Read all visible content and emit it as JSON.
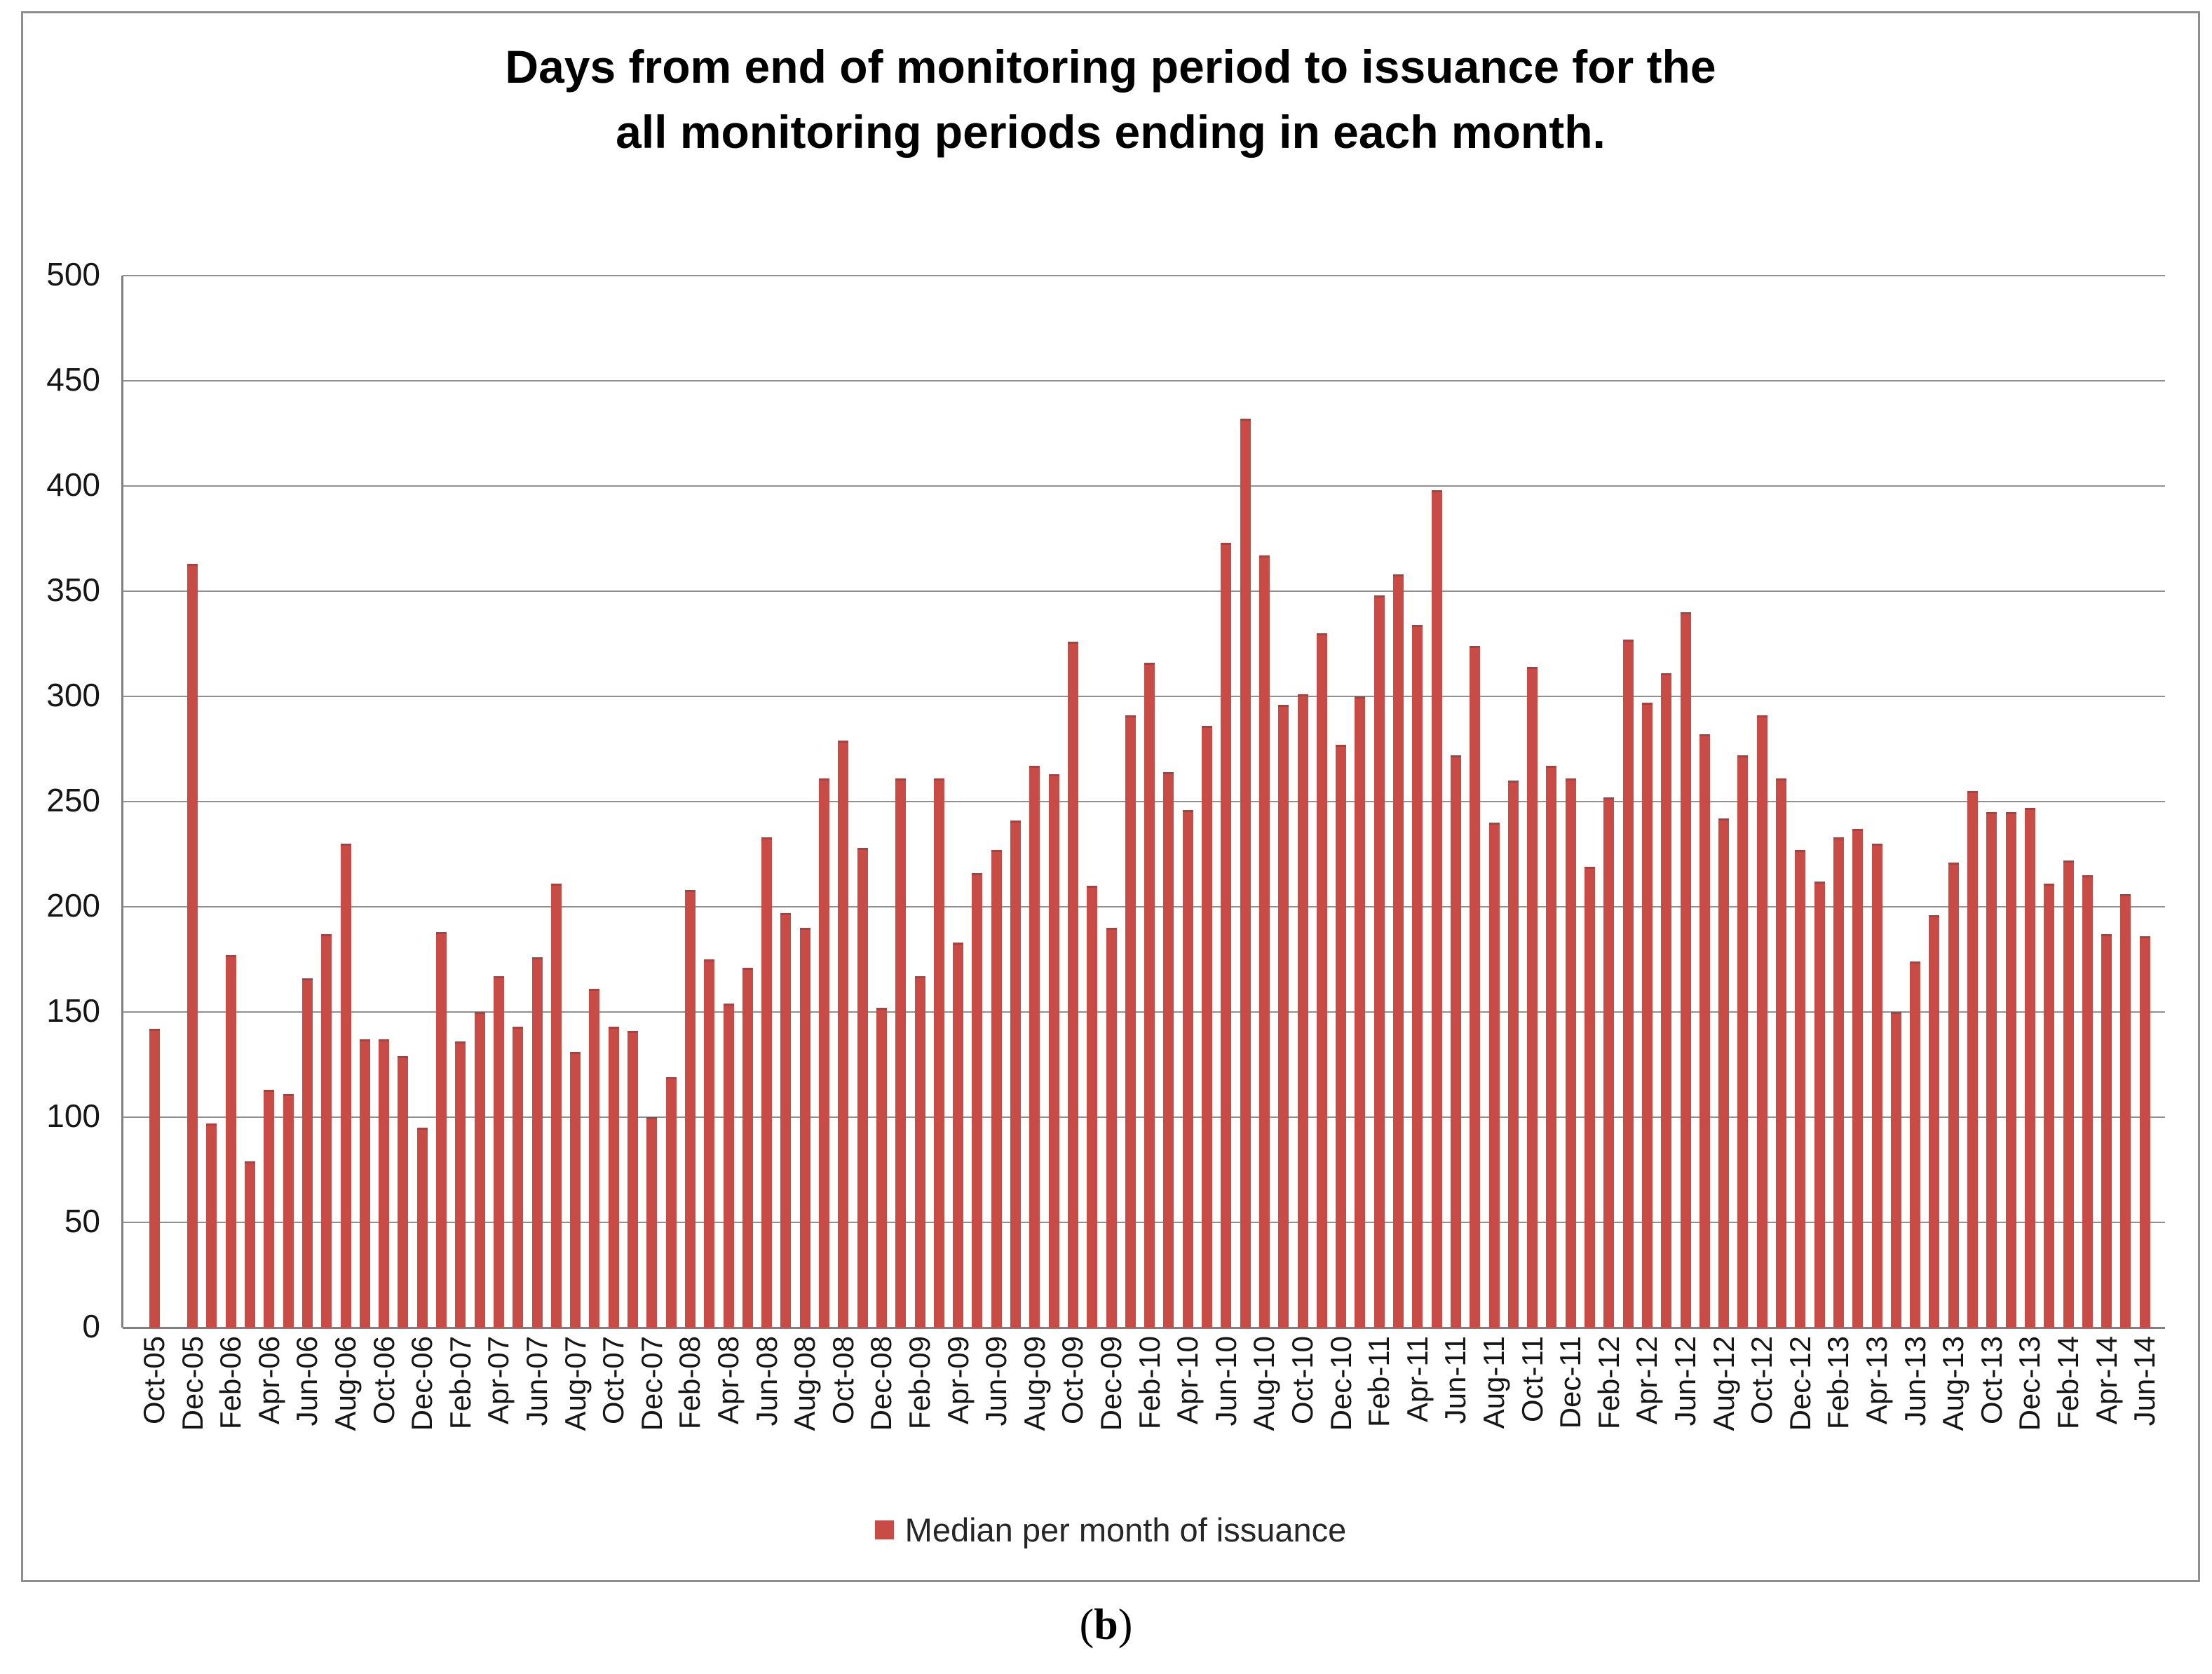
{
  "title": {
    "line1": "Days from end of monitoring period to issuance for the",
    "line2": "all monitoring periods ending in each month."
  },
  "legend": {
    "label": "Median per month of issuance",
    "marker_color": "#c84b45"
  },
  "caption": {
    "open": "(",
    "letter": "b",
    "close": ")"
  },
  "colors": {
    "bar": "#c84b45",
    "bar_cap": "#ab403c",
    "gridline": "#909090",
    "axis": "#7f7f7f",
    "frame": "#8d8d8d",
    "text": "#161616"
  },
  "chart_data": {
    "type": "bar",
    "title": "Days from end of monitoring period to issuance for the all monitoring periods ending in each month.",
    "xlabel": "",
    "ylabel": "",
    "ylim": [
      0,
      500
    ],
    "yticks": [
      0,
      50,
      100,
      150,
      200,
      250,
      300,
      350,
      400,
      450,
      500
    ],
    "grid": true,
    "legend_entries": [
      "Median per month of issuance"
    ],
    "legend_position": "bottom",
    "x_tick_every": 2,
    "categories": [
      "Oct-05",
      "Nov-05",
      "Dec-05",
      "Jan-06",
      "Feb-06",
      "Mar-06",
      "Apr-06",
      "May-06",
      "Jun-06",
      "Jul-06",
      "Aug-06",
      "Sep-06",
      "Oct-06",
      "Nov-06",
      "Dec-06",
      "Jan-07",
      "Feb-07",
      "Mar-07",
      "Apr-07",
      "May-07",
      "Jun-07",
      "Jul-07",
      "Aug-07",
      "Sep-07",
      "Oct-07",
      "Nov-07",
      "Dec-07",
      "Jan-08",
      "Feb-08",
      "Mar-08",
      "Apr-08",
      "May-08",
      "Jun-08",
      "Jul-08",
      "Aug-08",
      "Sep-08",
      "Oct-08",
      "Nov-08",
      "Dec-08",
      "Jan-09",
      "Feb-09",
      "Mar-09",
      "Apr-09",
      "May-09",
      "Jun-09",
      "Jul-09",
      "Aug-09",
      "Sep-09",
      "Oct-09",
      "Nov-09",
      "Dec-09",
      "Jan-10",
      "Feb-10",
      "Mar-10",
      "Apr-10",
      "May-10",
      "Jun-10",
      "Jul-10",
      "Aug-10",
      "Sep-10",
      "Oct-10",
      "Nov-10",
      "Dec-10",
      "Jan-11",
      "Feb-11",
      "Mar-11",
      "Apr-11",
      "May-11",
      "Jun-11",
      "Jul-11",
      "Aug-11",
      "Sep-11",
      "Oct-11",
      "Nov-11",
      "Dec-11",
      "Jan-12",
      "Feb-12",
      "Mar-12",
      "Apr-12",
      "May-12",
      "Jun-12",
      "Jul-12",
      "Aug-12",
      "Sep-12",
      "Oct-12",
      "Nov-12",
      "Dec-12",
      "Jan-13",
      "Feb-13",
      "Mar-13",
      "Apr-13",
      "May-13",
      "Jun-13",
      "Jul-13",
      "Aug-13",
      "Sep-13",
      "Oct-13",
      "Nov-13",
      "Dec-13",
      "Jan-14",
      "Feb-14",
      "Mar-14",
      "Apr-14",
      "May-14",
      "Jun-14"
    ],
    "values": [
      142,
      null,
      363,
      97,
      177,
      79,
      113,
      111,
      166,
      187,
      230,
      137,
      137,
      129,
      95,
      188,
      136,
      150,
      167,
      143,
      176,
      211,
      131,
      161,
      143,
      141,
      100,
      119,
      208,
      175,
      154,
      171,
      233,
      197,
      190,
      261,
      279,
      228,
      152,
      261,
      167,
      261,
      183,
      216,
      227,
      241,
      267,
      263,
      326,
      210,
      190,
      291,
      316,
      264,
      246,
      286,
      373,
      432,
      367,
      296,
      301,
      330,
      277,
      300,
      348,
      358,
      334,
      398,
      272,
      324,
      240,
      260,
      314,
      267,
      261,
      219,
      252,
      327,
      297,
      311,
      340,
      282,
      242,
      272,
      291,
      261,
      227,
      212,
      233,
      237,
      230,
      150,
      174,
      196,
      221,
      255,
      245,
      245,
      247,
      211,
      222,
      215,
      187,
      206,
      186
    ]
  }
}
